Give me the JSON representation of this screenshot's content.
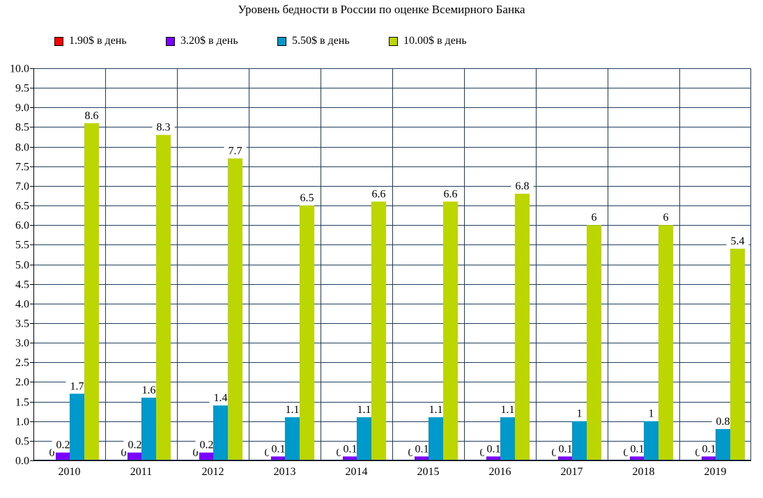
{
  "chart_data": {
    "type": "bar",
    "title": "Уровень бедности в России по оценке Всемирного Банка",
    "xlabel": "",
    "ylabel": "",
    "categories": [
      "2010",
      "2011",
      "2012",
      "2013",
      "2014",
      "2015",
      "2016",
      "2017",
      "2018",
      "2019"
    ],
    "series": [
      {
        "name": "1.90$ в день",
        "color": "#ff0000",
        "values": [
          0,
          0,
          0,
          0,
          0,
          0,
          0,
          0,
          0,
          0
        ]
      },
      {
        "name": "3.20$ в день",
        "color": "#7b00ff",
        "values": [
          0.2,
          0.2,
          0.2,
          0.1,
          0.1,
          0.1,
          0.1,
          0.1,
          0.1,
          0.1
        ]
      },
      {
        "name": "5.50$ в день",
        "color": "#0099cc",
        "values": [
          1.7,
          1.6,
          1.4,
          1.1,
          1.1,
          1.1,
          1.1,
          1,
          1,
          0.8
        ]
      },
      {
        "name": "10.00$ в день",
        "color": "#bbd600",
        "values": [
          8.6,
          8.3,
          7.7,
          6.5,
          6.6,
          6.6,
          6.8,
          6,
          6,
          5.4
        ]
      }
    ],
    "ylim": [
      0,
      10
    ],
    "ytick_step": 0.5,
    "ytick_labels": [
      "0.0",
      "0.5",
      "1.0",
      "1.5",
      "2.0",
      "2.5",
      "3.0",
      "3.5",
      "4.0",
      "4.5",
      "5.0",
      "5.5",
      "6.0",
      "6.5",
      "7.0",
      "7.5",
      "8.0",
      "8.5",
      "9.0",
      "9.5",
      "10.0"
    ],
    "grid": true,
    "grid_color": "#1f3d5c",
    "legend_position": "top-left"
  }
}
